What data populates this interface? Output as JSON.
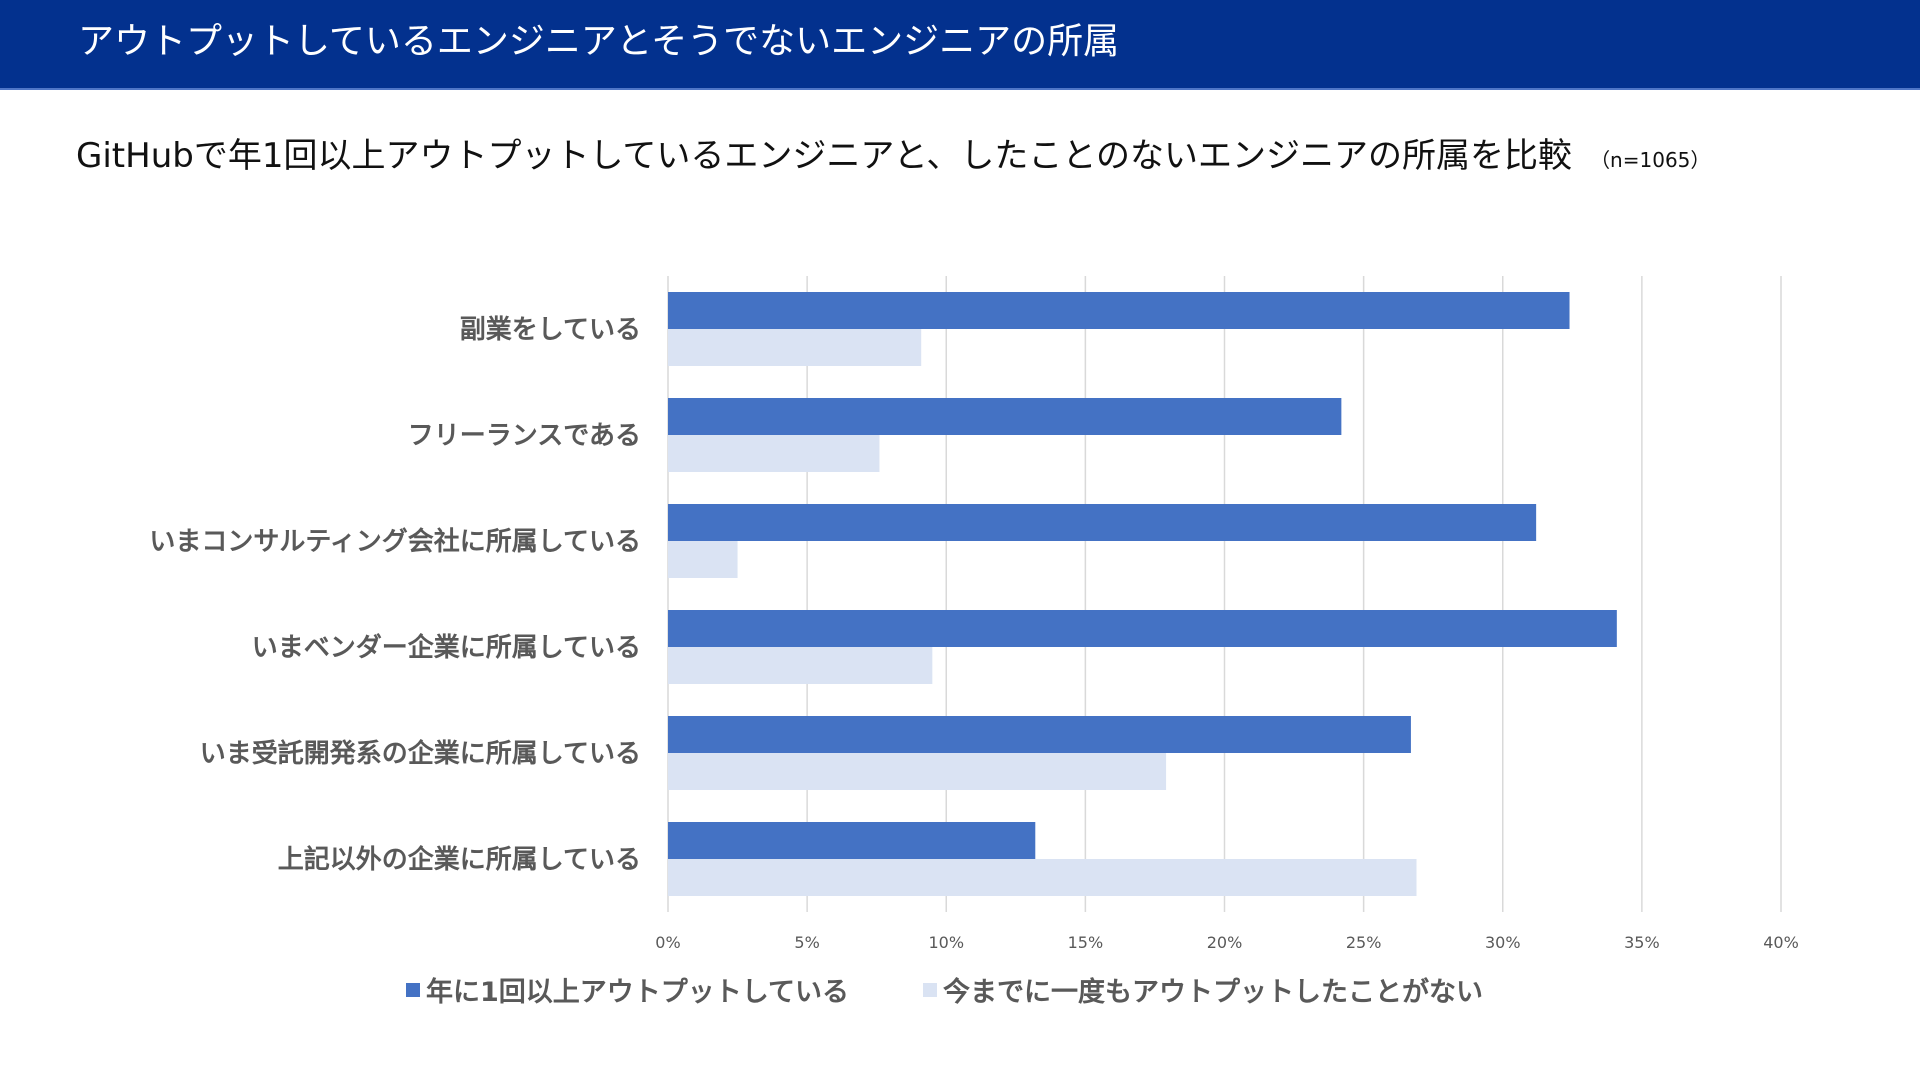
{
  "header": {
    "title": "アウトプットしているエンジニアとそうでないエンジニアの所属"
  },
  "subtitle": {
    "text": "GitHubで年1回以上アウトプットしているエンジニアと、したことのないエンジニアの所属を比較",
    "sample_size": "（n=1065）"
  },
  "colors": {
    "header_bg": "#03318e",
    "series_output": "#4472c4",
    "series_no_output": "#dae3f3",
    "grid": "#d9d9d9"
  },
  "chart_data": {
    "type": "bar",
    "orientation": "horizontal",
    "categories": [
      "副業をしている",
      "フリーランスである",
      "いまコンサルティング会社に所属している",
      "いまベンダー企業に所属している",
      "いま受託開発系の企業に所属している",
      "上記以外の企業に所属している"
    ],
    "series": [
      {
        "name": "年に1回以上アウトプットしている",
        "values": [
          32.4,
          24.2,
          31.2,
          34.1,
          26.7,
          13.2
        ]
      },
      {
        "name": "今までに一度もアウトプットしたことがない",
        "values": [
          9.1,
          7.6,
          2.5,
          9.5,
          17.9,
          26.9
        ]
      }
    ],
    "xlim": [
      0,
      40
    ],
    "x_ticks": [
      "0%",
      "5%",
      "10%",
      "15%",
      "20%",
      "25%",
      "30%",
      "35%",
      "40%"
    ],
    "grid": true,
    "legend_position": "bottom"
  }
}
